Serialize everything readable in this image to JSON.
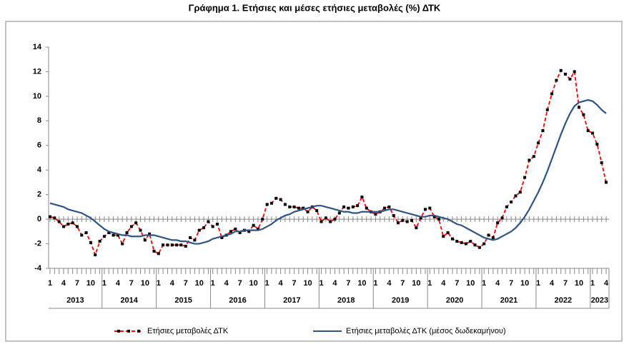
{
  "chart_data": {
    "type": "line",
    "title": "Γράφημα 1. Ετήσιες και μέσες ετήσιες μεταβολές (%) ΔΤΚ",
    "categories": [
      "1",
      null,
      null,
      "4",
      null,
      null,
      "7",
      null,
      null,
      "10",
      null,
      null,
      "1",
      null,
      null,
      "4",
      null,
      null,
      "7",
      null,
      null,
      "10",
      null,
      null,
      "1",
      null,
      null,
      "4",
      null,
      null,
      "7",
      null,
      null,
      "10",
      null,
      null,
      "1",
      null,
      null,
      "4",
      null,
      null,
      "7",
      null,
      null,
      "10",
      null,
      null,
      "1",
      null,
      null,
      "4",
      null,
      null,
      "7",
      null,
      null,
      "10",
      null,
      null,
      "1",
      null,
      null,
      "4",
      null,
      null,
      "7",
      null,
      null,
      "10",
      null,
      null,
      "1",
      null,
      null,
      "4",
      null,
      null,
      "7",
      null,
      null,
      "10",
      null,
      null,
      "1",
      null,
      null,
      "4",
      null,
      null,
      "7",
      null,
      null,
      "10",
      null,
      null,
      "1",
      null,
      null,
      "4",
      null,
      null,
      "7",
      null,
      null,
      "10",
      null,
      null,
      "1",
      null,
      null,
      "4",
      null,
      null,
      "7",
      null,
      null,
      "10",
      null,
      null,
      "1",
      null,
      null,
      "4"
    ],
    "years": [
      "2013",
      "2014",
      "2015",
      "2016",
      "2017",
      "2018",
      "2019",
      "2020",
      "2021",
      "2022",
      "2023"
    ],
    "series": [
      {
        "name": "Ετήσιες μεταβολές ΔΤΚ",
        "color": "#ff0000",
        "marker_color": "#000000",
        "dashed": true,
        "values": [
          0.2,
          0.1,
          -0.2,
          -0.6,
          -0.4,
          -0.3,
          -0.6,
          -1.3,
          -1.1,
          -1.9,
          -2.9,
          -1.8,
          -1.4,
          -1.1,
          -1.3,
          -1.3,
          -2.0,
          -1.1,
          -0.6,
          -0.3,
          -0.9,
          -1.7,
          -1.2,
          -2.6,
          -2.8,
          -2.1,
          -2.1,
          -2.1,
          -2.1,
          -2.1,
          -2.2,
          -1.5,
          -1.7,
          -0.9,
          -0.7,
          -0.2,
          -0.6,
          -0.4,
          -1.5,
          -1.3,
          -1.0,
          -0.8,
          -1.1,
          -0.9,
          -1.0,
          -0.5,
          -0.8,
          0.0,
          1.2,
          1.3,
          1.7,
          1.6,
          1.2,
          1.0,
          1.0,
          0.9,
          0.9,
          0.6,
          1.0,
          0.7,
          -0.2,
          0.1,
          -0.2,
          0.0,
          0.5,
          1.0,
          0.9,
          1.0,
          1.1,
          1.8,
          0.9,
          0.6,
          0.4,
          0.6,
          0.9,
          1.0,
          0.3,
          -0.3,
          -0.1,
          -0.2,
          -0.1,
          -0.7,
          0.1,
          0.8,
          0.9,
          0.2,
          0.0,
          -1.4,
          -1.1,
          -1.6,
          -1.8,
          -1.9,
          -2.0,
          -1.8,
          -2.1,
          -2.3,
          -2.0,
          -1.3,
          -1.5,
          -0.3,
          0.1,
          1.0,
          1.4,
          1.9,
          2.2,
          3.4,
          4.8,
          5.1,
          6.2,
          7.2,
          8.9,
          10.2,
          11.3,
          12.1,
          11.8,
          11.4,
          12.0,
          9.1,
          8.5,
          7.2,
          7.0,
          6.1,
          4.6,
          3.0
        ]
      },
      {
        "name": "Ετήσιες μεταβολές ΔΤΚ (μέσος δωδεκαμήνου)",
        "color": "#2e5486",
        "dashed": false,
        "values": [
          1.3,
          1.2,
          1.1,
          1.0,
          0.8,
          0.7,
          0.6,
          0.5,
          0.3,
          0.1,
          -0.2,
          -0.5,
          -0.8,
          -1.0,
          -1.1,
          -1.2,
          -1.3,
          -1.3,
          -1.4,
          -1.4,
          -1.4,
          -1.3,
          -1.3,
          -1.3,
          -1.4,
          -1.5,
          -1.6,
          -1.7,
          -1.7,
          -1.8,
          -1.8,
          -1.9,
          -2.0,
          -2.0,
          -1.9,
          -1.8,
          -1.6,
          -1.5,
          -1.4,
          -1.3,
          -1.2,
          -1.0,
          -1.0,
          -0.9,
          -0.9,
          -0.9,
          -0.9,
          -0.8,
          -0.6,
          -0.4,
          -0.1,
          0.1,
          0.3,
          0.4,
          0.6,
          0.7,
          0.8,
          0.9,
          1.0,
          1.1,
          1.1,
          1.0,
          0.9,
          0.8,
          0.7,
          0.6,
          0.6,
          0.5,
          0.5,
          0.6,
          0.6,
          0.6,
          0.6,
          0.6,
          0.7,
          0.8,
          0.8,
          0.7,
          0.6,
          0.5,
          0.4,
          0.3,
          0.2,
          0.2,
          0.3,
          0.3,
          0.2,
          0.1,
          0.0,
          -0.2,
          -0.4,
          -0.5,
          -0.7,
          -0.9,
          -1.1,
          -1.3,
          -1.5,
          -1.6,
          -1.7,
          -1.6,
          -1.4,
          -1.2,
          -1.0,
          -0.7,
          -0.3,
          0.2,
          0.8,
          1.5,
          2.2,
          3.0,
          3.9,
          4.9,
          5.9,
          6.9,
          7.8,
          8.6,
          9.2,
          9.5,
          9.6,
          9.7,
          9.6,
          9.3,
          8.9,
          8.6
        ]
      }
    ],
    "ylim": [
      -4,
      14
    ],
    "yticks": [
      -4,
      -2,
      0,
      2,
      4,
      6,
      8,
      10,
      12,
      14
    ],
    "grid": false,
    "legend": "bottom"
  }
}
